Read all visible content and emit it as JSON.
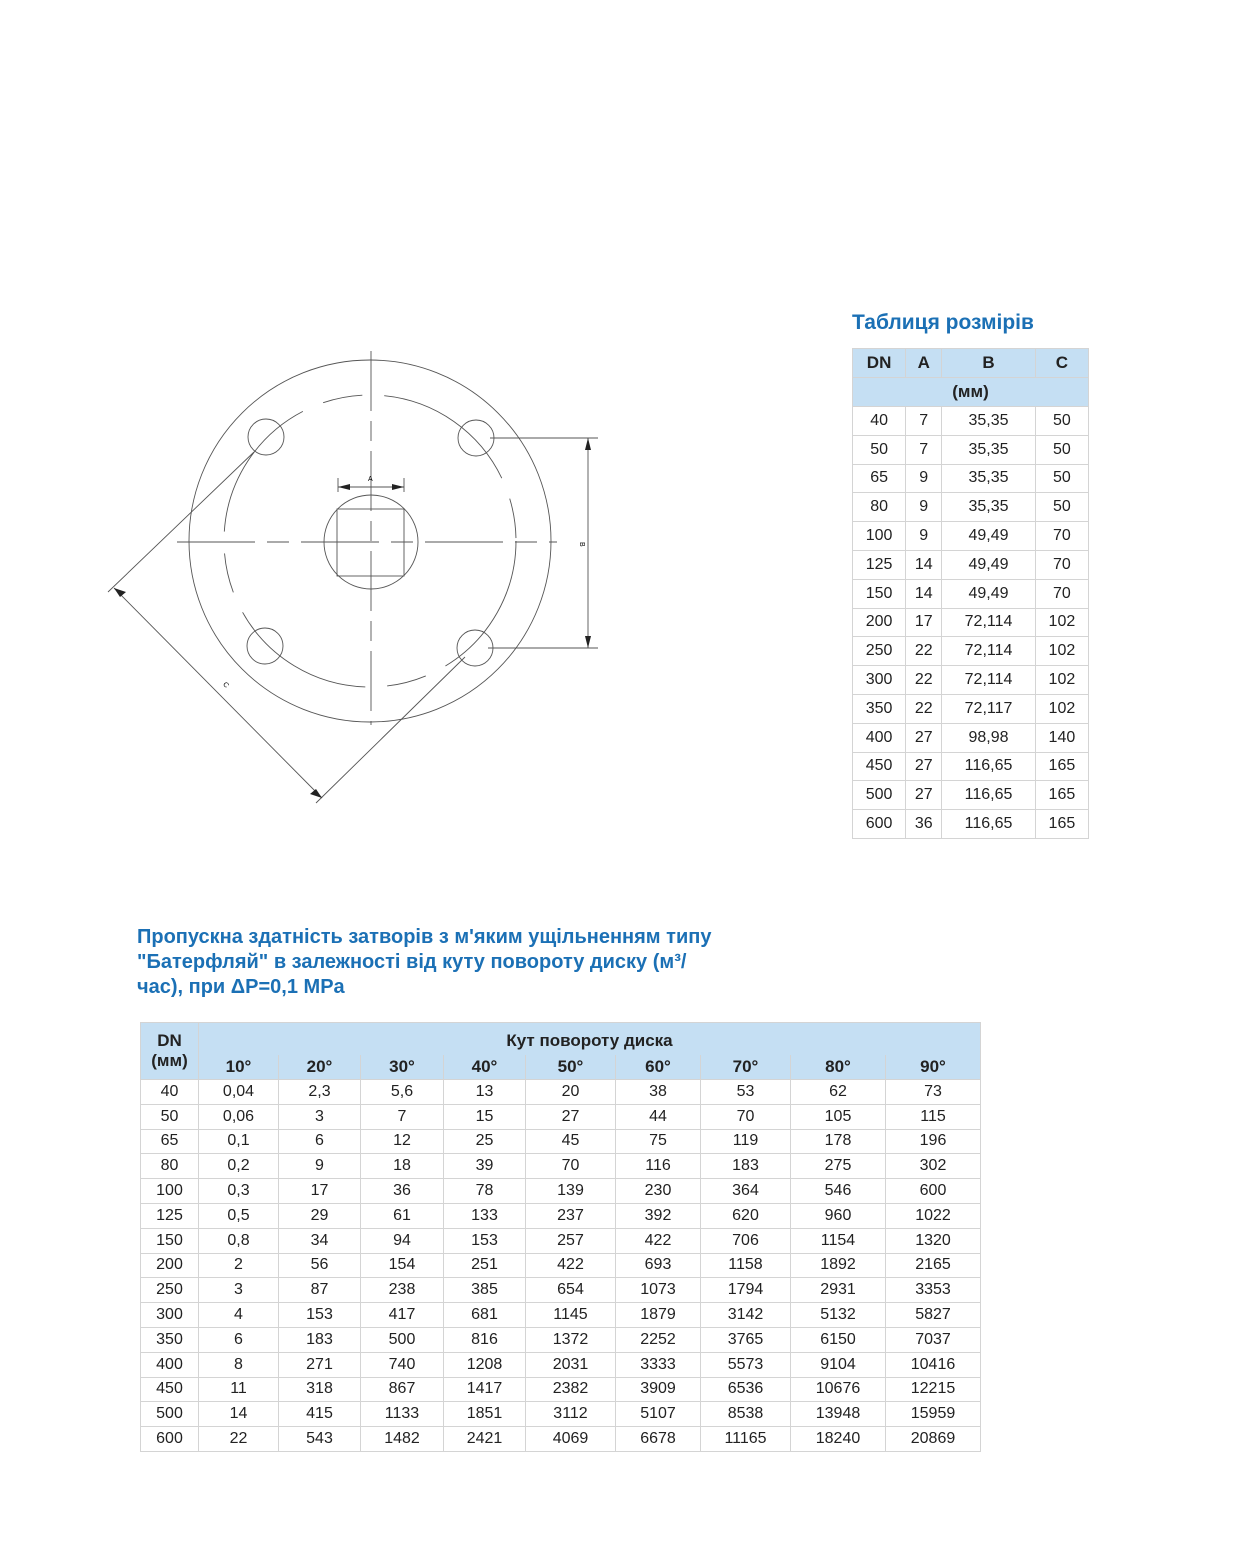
{
  "drawing": {
    "label_a": "A",
    "label_b": "B",
    "label_c": "C"
  },
  "dimensions": {
    "title": "Таблиця розмірів",
    "headers": [
      "DN",
      "A",
      "B",
      "C"
    ],
    "unit": "(мм)",
    "rows": [
      [
        "40",
        "7",
        "35,35",
        "50"
      ],
      [
        "50",
        "7",
        "35,35",
        "50"
      ],
      [
        "65",
        "9",
        "35,35",
        "50"
      ],
      [
        "80",
        "9",
        "35,35",
        "50"
      ],
      [
        "100",
        "9",
        "49,49",
        "70"
      ],
      [
        "125",
        "14",
        "49,49",
        "70"
      ],
      [
        "150",
        "14",
        "49,49",
        "70"
      ],
      [
        "200",
        "17",
        "72,114",
        "102"
      ],
      [
        "250",
        "22",
        "72,114",
        "102"
      ],
      [
        "300",
        "22",
        "72,114",
        "102"
      ],
      [
        "350",
        "22",
        "72,117",
        "102"
      ],
      [
        "400",
        "27",
        "98,98",
        "140"
      ],
      [
        "450",
        "27",
        "116,65",
        "165"
      ],
      [
        "500",
        "27",
        "116,65",
        "165"
      ],
      [
        "600",
        "36",
        "116,65",
        "165"
      ]
    ]
  },
  "flow": {
    "title_lines": [
      "Пропускна здатність затворів з м'яким ущільненням типу",
      "\"Батерфляй\" в залежності від куту повороту диску (м³/",
      "час), при ΔP=0,1 MPa"
    ],
    "dn_header": "DN",
    "dn_unit": "(мм)",
    "angle_header": "Кут повороту диска",
    "angles": [
      "10°",
      "20°",
      "30°",
      "40°",
      "50°",
      "60°",
      "70°",
      "80°",
      "90°"
    ],
    "rows": [
      [
        "40",
        "0,04",
        "2,3",
        "5,6",
        "13",
        "20",
        "38",
        "53",
        "62",
        "73"
      ],
      [
        "50",
        "0,06",
        "3",
        "7",
        "15",
        "27",
        "44",
        "70",
        "105",
        "115"
      ],
      [
        "65",
        "0,1",
        "6",
        "12",
        "25",
        "45",
        "75",
        "119",
        "178",
        "196"
      ],
      [
        "80",
        "0,2",
        "9",
        "18",
        "39",
        "70",
        "116",
        "183",
        "275",
        "302"
      ],
      [
        "100",
        "0,3",
        "17",
        "36",
        "78",
        "139",
        "230",
        "364",
        "546",
        "600"
      ],
      [
        "125",
        "0,5",
        "29",
        "61",
        "133",
        "237",
        "392",
        "620",
        "960",
        "1022"
      ],
      [
        "150",
        "0,8",
        "34",
        "94",
        "153",
        "257",
        "422",
        "706",
        "1154",
        "1320"
      ],
      [
        "200",
        "2",
        "56",
        "154",
        "251",
        "422",
        "693",
        "1158",
        "1892",
        "2165"
      ],
      [
        "250",
        "3",
        "87",
        "238",
        "385",
        "654",
        "1073",
        "1794",
        "2931",
        "3353"
      ],
      [
        "300",
        "4",
        "153",
        "417",
        "681",
        "1145",
        "1879",
        "3142",
        "5132",
        "5827"
      ],
      [
        "350",
        "6",
        "183",
        "500",
        "816",
        "1372",
        "2252",
        "3765",
        "6150",
        "7037"
      ],
      [
        "400",
        "8",
        "271",
        "740",
        "1208",
        "2031",
        "3333",
        "5573",
        "9104",
        "10416"
      ],
      [
        "450",
        "11",
        "318",
        "867",
        "1417",
        "2382",
        "3909",
        "6536",
        "10676",
        "12215"
      ],
      [
        "500",
        "14",
        "415",
        "1133",
        "1851",
        "3112",
        "5107",
        "8538",
        "13948",
        "15959"
      ],
      [
        "600",
        "22",
        "543",
        "1482",
        "2421",
        "4069",
        "6678",
        "11165",
        "18240",
        "20869"
      ]
    ]
  }
}
